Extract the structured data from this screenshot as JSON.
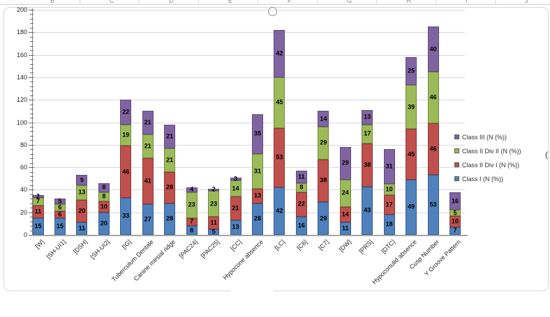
{
  "excel": {
    "column_letters": [
      "B",
      "C",
      "D",
      "E",
      "F",
      "G",
      "H",
      "I",
      "J"
    ]
  },
  "fragment_right": "(",
  "chart_data": {
    "type": "bar",
    "stacked": true,
    "title": "",
    "xlabel": "",
    "ylabel": "",
    "categories": [
      "[W]",
      "[SH-UI1]",
      "[DSH]",
      "[SH-UI2]",
      "[IG]",
      "Tuberculum Dentale",
      "Canine mesial ridge",
      "[PAC24]",
      "[PAC25]",
      "[CC]",
      "Hypocone absence",
      "[LC]",
      "[C6]",
      "[C7]",
      "[DW]",
      "[PRS]",
      "[DTC]",
      "Hypoconulid absence",
      "Cusp Number",
      "Y Groove Pattern"
    ],
    "series": [
      {
        "name": "Class I (N (%))",
        "color": "#4f81bd",
        "border_color": "#385d8a",
        "values": [
          15,
          15,
          11,
          20,
          33,
          27,
          28,
          8,
          5,
          13,
          28,
          42,
          16,
          29,
          11,
          43,
          18,
          49,
          53,
          7
        ]
      },
      {
        "name": "Class II Div I (N (%))",
        "color": "#c0504d",
        "border_color": "#8c3836",
        "values": [
          11,
          6,
          20,
          10,
          46,
          41,
          28,
          7,
          11,
          21,
          13,
          53,
          22,
          38,
          14,
          38,
          17,
          45,
          46,
          10
        ]
      },
      {
        "name": "Class II Div II (N (%))",
        "color": "#9bbb59",
        "border_color": "#71893f",
        "values": [
          7,
          6,
          13,
          8,
          19,
          21,
          21,
          23,
          23,
          14,
          31,
          45,
          8,
          29,
          24,
          17,
          10,
          39,
          46,
          5
        ]
      },
      {
        "name": "Class III (N (%))",
        "color": "#8064a2",
        "border_color": "#5f497a",
        "values": [
          2,
          5,
          9,
          8,
          22,
          21,
          21,
          4,
          2,
          3,
          35,
          42,
          11,
          14,
          29,
          13,
          31,
          25,
          40,
          16
        ]
      }
    ],
    "ylim": [
      0,
      200
    ],
    "ytick_step": 20,
    "minor_tick_step": 4,
    "grid": true,
    "gridline_color": "#d9d9d9",
    "data_labels": true,
    "legend_position": "right",
    "legend_order": [
      "Class III (N (%))",
      "Class II Div II (N (%))",
      "Class II Div I (N (%))",
      "Class I (N (%))"
    ]
  }
}
